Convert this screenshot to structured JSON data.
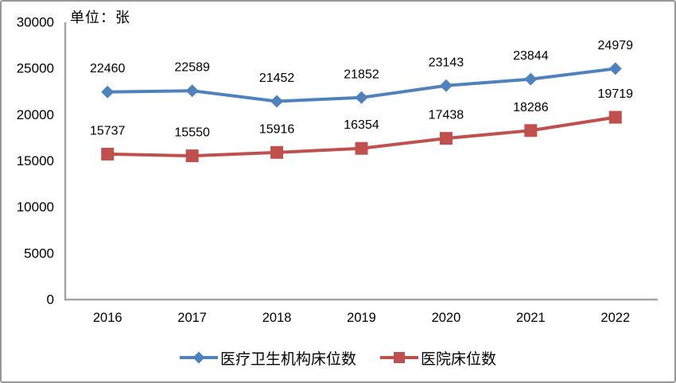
{
  "chart_data": {
    "type": "line",
    "title": "",
    "unit_label": "单位：张",
    "categories": [
      "2016",
      "2017",
      "2018",
      "2019",
      "2020",
      "2021",
      "2022"
    ],
    "series": [
      {
        "name": "医疗卫生机构床位数",
        "marker": "diamond",
        "color": "#4F81BD",
        "values": [
          22460,
          22589,
          21452,
          21852,
          23143,
          23844,
          24979
        ]
      },
      {
        "name": "医院床位数",
        "marker": "square",
        "color": "#C0504D",
        "values": [
          15737,
          15550,
          15916,
          16354,
          17438,
          18286,
          19719
        ]
      }
    ],
    "ylim": [
      0,
      30000
    ],
    "ytick_step": 5000,
    "yticks": [
      "0",
      "5000",
      "10000",
      "15000",
      "20000",
      "25000",
      "30000"
    ],
    "grid": false,
    "data_labels": true,
    "legend_position": "bottom",
    "axis_color": "#A6A6A6",
    "border_color": "#979797",
    "text_color": "#000000"
  }
}
